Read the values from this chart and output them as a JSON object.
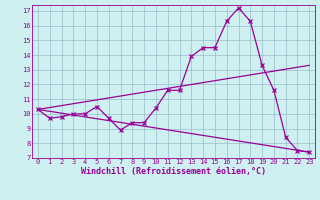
{
  "xlabel": "Windchill (Refroidissement éolien,°C)",
  "bg_color": "#cef0f0",
  "line_color": "#990099",
  "grid_color": "#aaccaa",
  "xlim": [
    -0.5,
    23.5
  ],
  "ylim": [
    7,
    17.4
  ],
  "xticks": [
    0,
    1,
    2,
    3,
    4,
    5,
    6,
    7,
    8,
    9,
    10,
    11,
    12,
    13,
    14,
    15,
    16,
    17,
    18,
    19,
    20,
    21,
    22,
    23
  ],
  "yticks": [
    7,
    8,
    9,
    10,
    11,
    12,
    13,
    14,
    15,
    16,
    17
  ],
  "line1_x": [
    0,
    1,
    2,
    3,
    4,
    5,
    6,
    7,
    8,
    9,
    10,
    11,
    12,
    13,
    14,
    15,
    16,
    17,
    18,
    19,
    20,
    21,
    22,
    23
  ],
  "line1_y": [
    10.3,
    9.7,
    9.8,
    10.0,
    10.0,
    10.5,
    9.7,
    8.9,
    9.4,
    9.4,
    10.4,
    11.6,
    11.6,
    13.9,
    14.5,
    14.5,
    16.3,
    17.2,
    16.3,
    13.3,
    11.6,
    8.4,
    7.5,
    7.4
  ],
  "line2_x": [
    0,
    23
  ],
  "line2_y": [
    10.3,
    13.3
  ],
  "line3_x": [
    0,
    23
  ],
  "line3_y": [
    10.3,
    7.4
  ],
  "tick_fontsize": 5.0,
  "xlabel_fontsize": 6.0,
  "grid_color2": "#99bbbb"
}
